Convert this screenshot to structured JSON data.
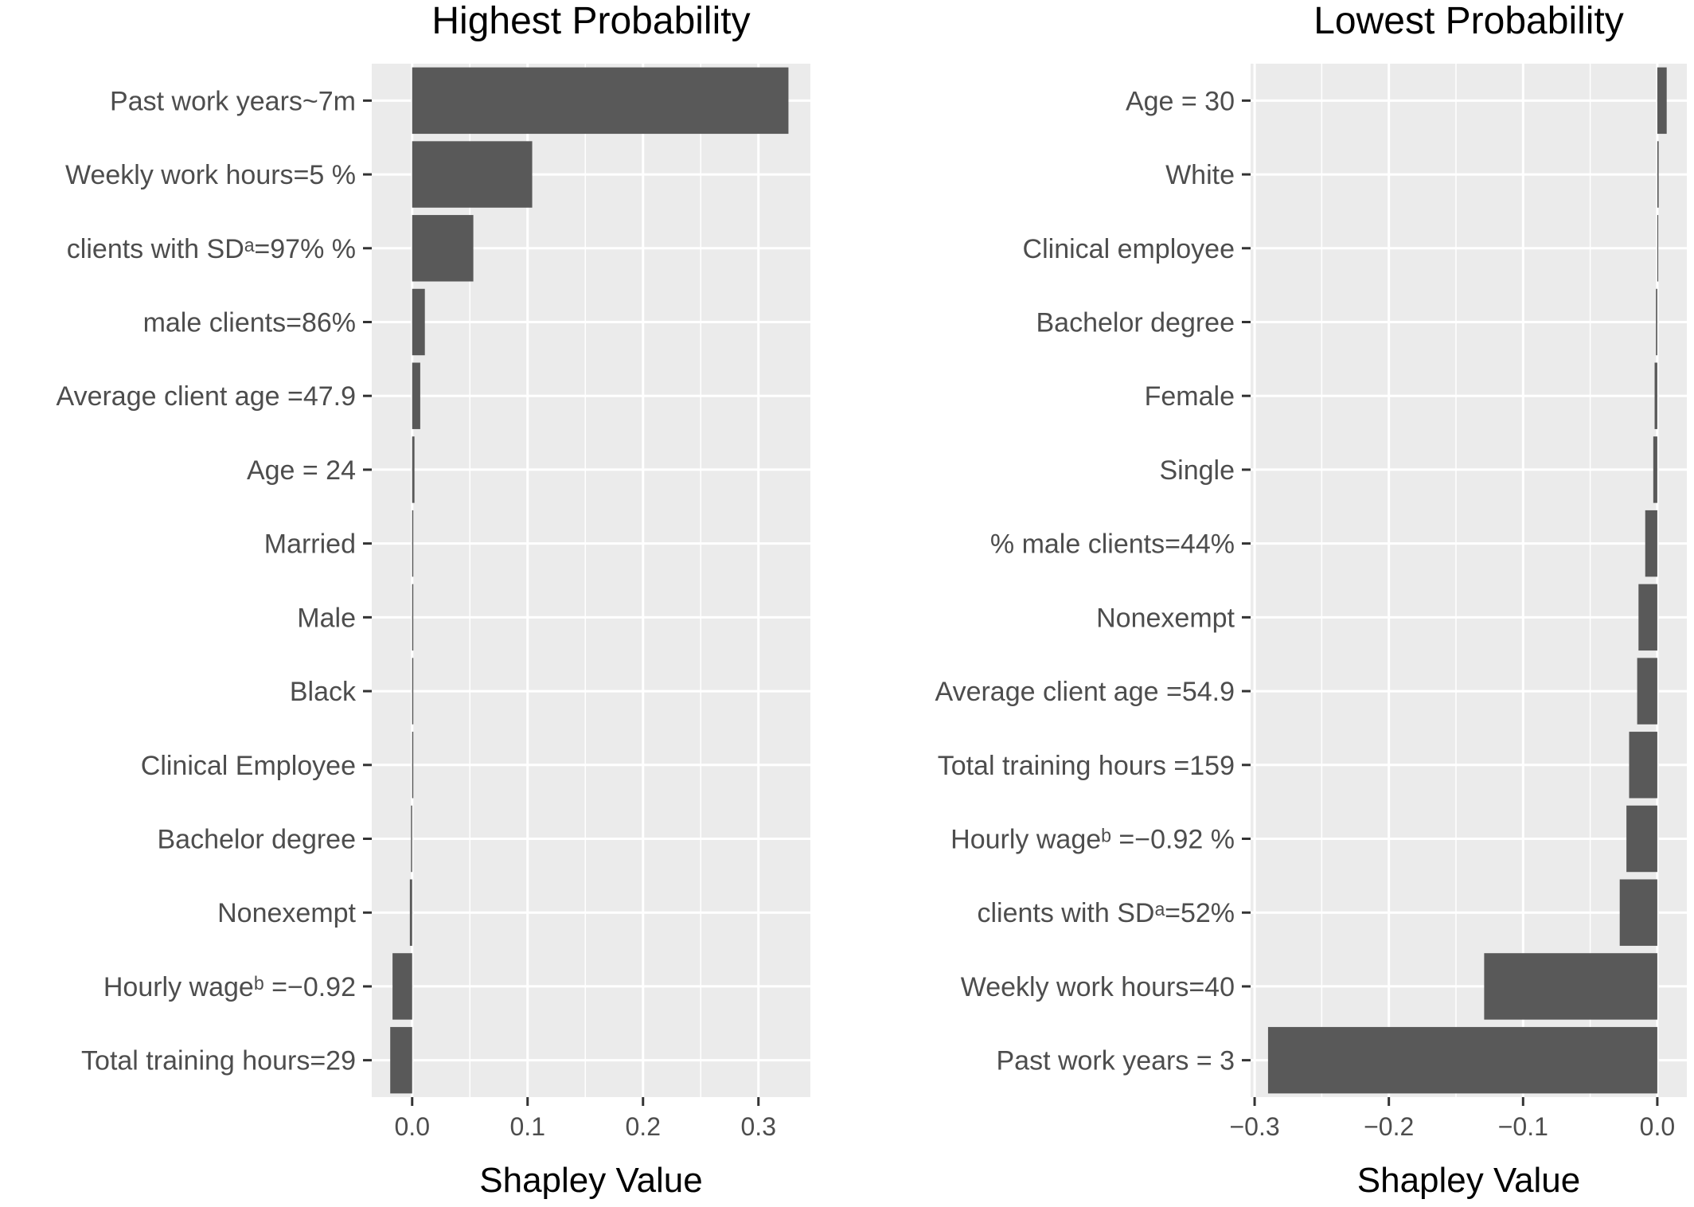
{
  "chart_data": [
    {
      "type": "bar",
      "orientation": "horizontal",
      "title": "Highest Probability",
      "xlabel": "Shapley Value",
      "ylabel": "",
      "xlim": [
        -0.035,
        0.345
      ],
      "xticks": [
        0.0,
        0.1,
        0.2,
        0.3
      ],
      "xtick_labels": [
        "0.0",
        "0.1",
        "0.2",
        "0.3"
      ],
      "grid": true,
      "categories": [
        "Past work years~7m",
        "Weekly work hours=5 %",
        "clients with SDᵃ=97% %",
        "male clients=86%",
        "Average client age =47.9",
        "Age = 24",
        "Married",
        "Male",
        "Black",
        "Clinical Employee",
        "Bachelor degree",
        "Nonexempt",
        "Hourly wageᵇ =−0.92",
        "Total training hours=29"
      ],
      "values": [
        0.326,
        0.104,
        0.053,
        0.011,
        0.007,
        0.002,
        0.001,
        0.001,
        0.001,
        0.001,
        -0.001,
        -0.002,
        -0.017,
        -0.019
      ]
    },
    {
      "type": "bar",
      "orientation": "horizontal",
      "title": "Lowest Probability",
      "xlabel": "Shapley Value",
      "ylabel": "",
      "xlim": [
        -0.303,
        0.022
      ],
      "xticks": [
        -0.3,
        -0.2,
        -0.1,
        0.0
      ],
      "xtick_labels": [
        "−0.3",
        "−0.2",
        "−0.1",
        "0.0"
      ],
      "grid": true,
      "categories": [
        "Age = 30",
        "White",
        "Clinical employee",
        "Bachelor degree",
        "Female",
        "Single",
        "% male clients=44%",
        "Nonexempt",
        "Average client age =54.9",
        "Total training hours =159",
        "Hourly wageᵇ =−0.92 %",
        "clients with SDᵃ=52%",
        "Weekly work hours=40",
        "Past work years = 3"
      ],
      "values": [
        0.007,
        0.001,
        0.0005,
        -0.001,
        -0.002,
        -0.003,
        -0.009,
        -0.014,
        -0.015,
        -0.021,
        -0.023,
        -0.028,
        -0.129,
        -0.29
      ]
    }
  ]
}
